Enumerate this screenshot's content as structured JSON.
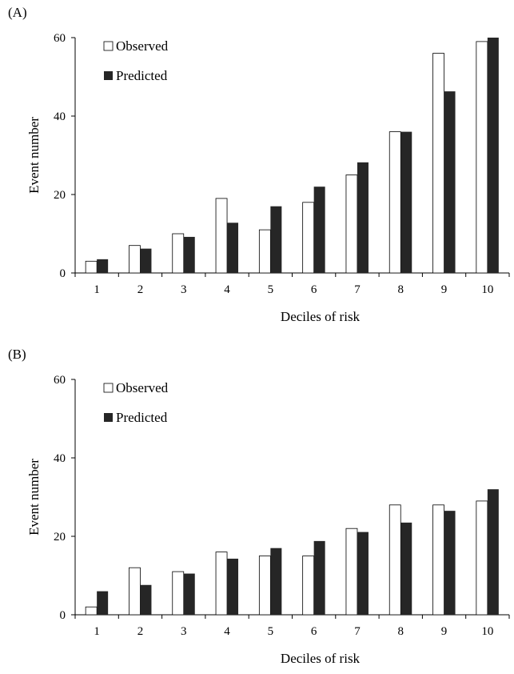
{
  "chart_data": [
    {
      "type": "bar",
      "panel_label": "(A)",
      "categories": [
        "1",
        "2",
        "3",
        "4",
        "5",
        "6",
        "7",
        "8",
        "9",
        "10"
      ],
      "series": [
        {
          "name": "Observed",
          "values": [
            3,
            7,
            10,
            19,
            11,
            18,
            25,
            36,
            56,
            59
          ],
          "color": "#ffffff"
        },
        {
          "name": "Predicted",
          "values": [
            3.5,
            6.2,
            9.2,
            12.8,
            17,
            22,
            28.2,
            36,
            46.3,
            60
          ],
          "color": "#262626"
        }
      ],
      "xlabel": "Deciles of risk",
      "ylabel": "Event number",
      "ylim": [
        0,
        60
      ],
      "yticks": [
        "0",
        "20",
        "40",
        "60"
      ],
      "grid": false,
      "legend_position": "top-left"
    },
    {
      "type": "bar",
      "panel_label": "(B)",
      "categories": [
        "1",
        "2",
        "3",
        "4",
        "5",
        "6",
        "7",
        "8",
        "9",
        "10"
      ],
      "series": [
        {
          "name": "Observed",
          "values": [
            2,
            12,
            11,
            16,
            15,
            15,
            22,
            28,
            28,
            29
          ],
          "color": "#ffffff"
        },
        {
          "name": "Predicted",
          "values": [
            6,
            7.6,
            10.5,
            14.3,
            17,
            18.8,
            21.1,
            23.5,
            26.5,
            32
          ],
          "color": "#262626"
        }
      ],
      "xlabel": "Deciles of risk",
      "ylabel": "Event number",
      "ylim": [
        0,
        60
      ],
      "yticks": [
        "0",
        "20",
        "40",
        "60"
      ],
      "grid": false,
      "legend_position": "top-left"
    }
  ]
}
